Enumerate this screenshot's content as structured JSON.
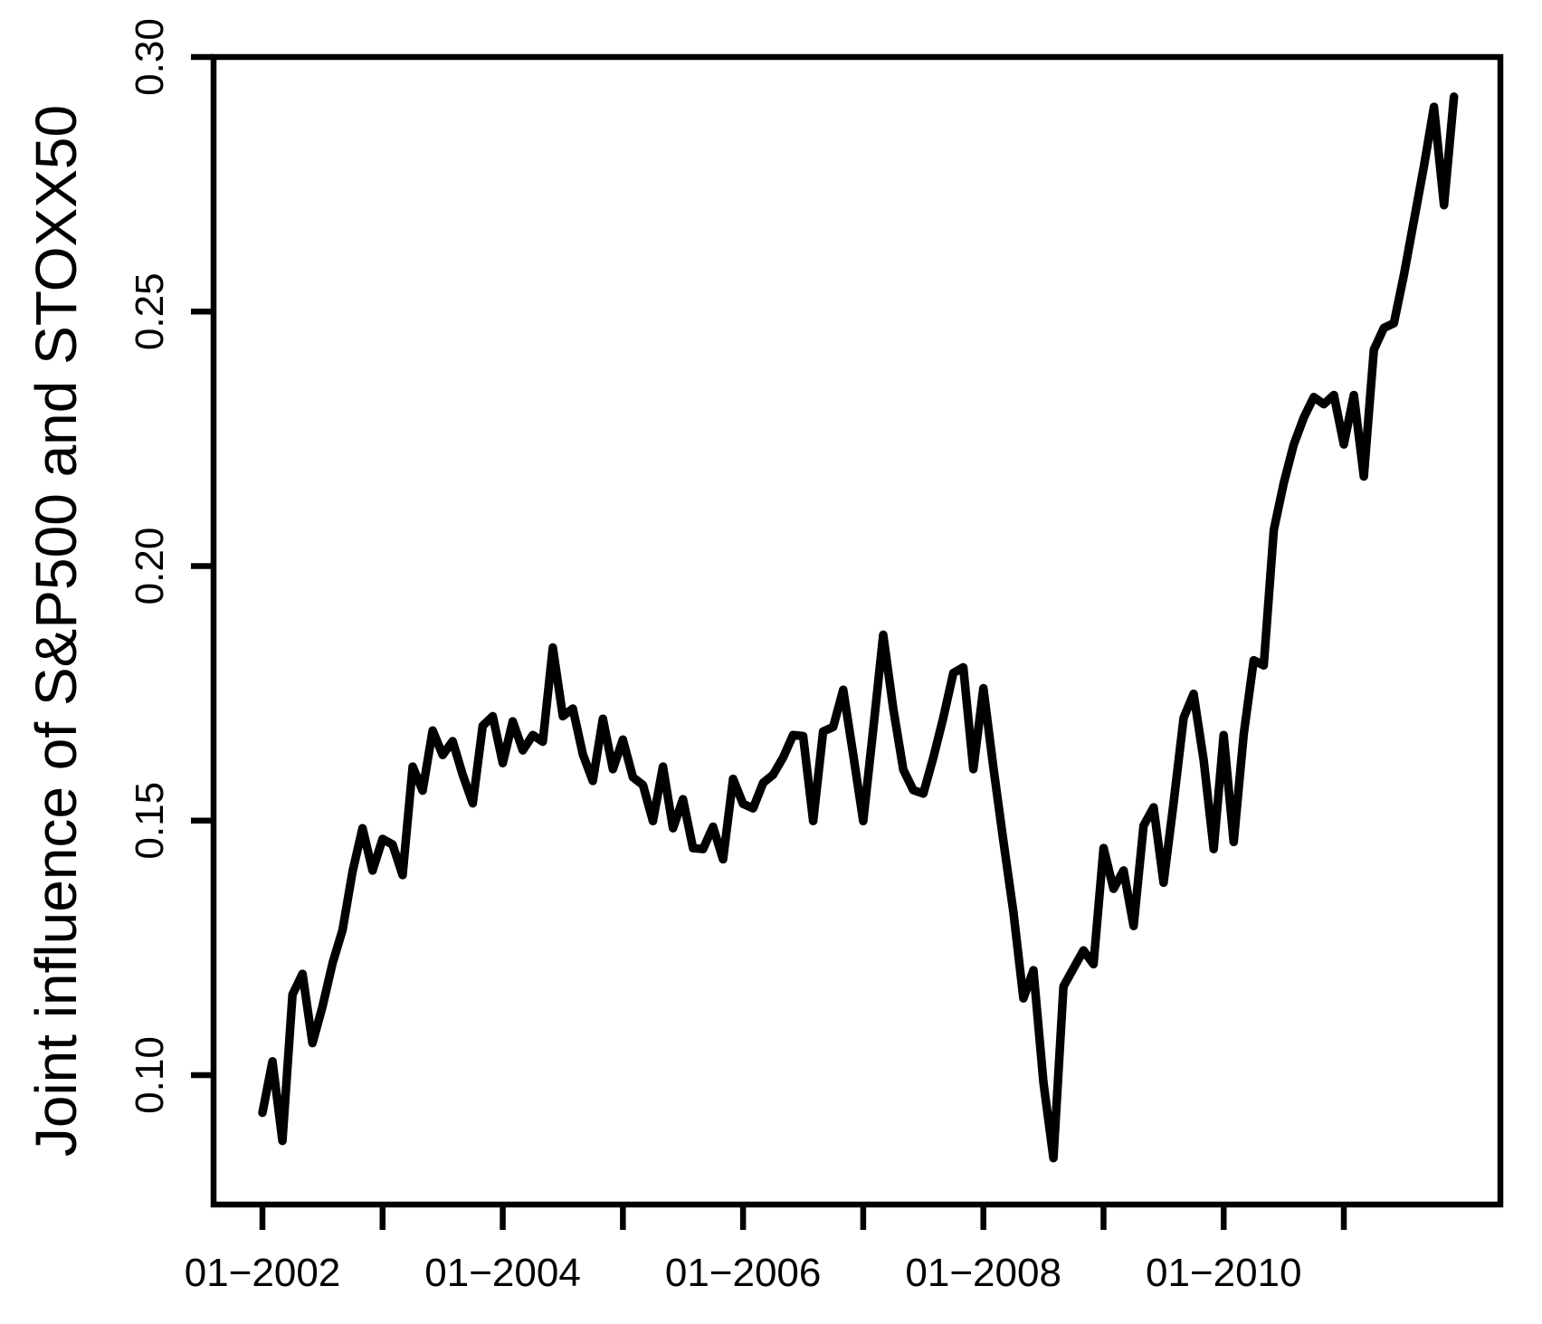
{
  "window": {
    "background": "#ffffff"
  },
  "chart_data": {
    "type": "line",
    "title": "",
    "xlabel": "",
    "ylabel": "Joint influence of S&P500 and STOXX50",
    "frequency": "monthly",
    "x_range": [
      "01-2002",
      "12-2011"
    ],
    "grid": false,
    "legend_position": "none",
    "line_color": "#000000",
    "axis_color": "#000000",
    "background_color": "#ffffff",
    "ylim": [
      0.075,
      0.3
    ],
    "y_ticks": [
      {
        "value": 0.1,
        "label": "0.10"
      },
      {
        "value": 0.15,
        "label": "0.15"
      },
      {
        "value": 0.2,
        "label": "0.20"
      },
      {
        "value": 0.25,
        "label": "0.25"
      },
      {
        "value": 0.3,
        "label": "0.30"
      }
    ],
    "x_ticks": [
      {
        "month_index": 0,
        "label": "01−2002"
      },
      {
        "month_index": 12,
        "label": ""
      },
      {
        "month_index": 24,
        "label": "01−2004"
      },
      {
        "month_index": 36,
        "label": ""
      },
      {
        "month_index": 48,
        "label": "01−2006"
      },
      {
        "month_index": 60,
        "label": ""
      },
      {
        "month_index": 72,
        "label": "01−2008"
      },
      {
        "month_index": 84,
        "label": ""
      },
      {
        "month_index": 96,
        "label": "01−2010"
      },
      {
        "month_index": 108,
        "label": ""
      }
    ],
    "values": [
      0.0926,
      0.1027,
      0.0871,
      0.1158,
      0.1199,
      0.1063,
      0.1135,
      0.122,
      0.1285,
      0.14,
      0.1485,
      0.1402,
      0.1464,
      0.1453,
      0.1393,
      0.1606,
      0.1559,
      0.1677,
      0.1629,
      0.1656,
      0.159,
      0.1534,
      0.1686,
      0.1705,
      0.1613,
      0.1695,
      0.1638,
      0.1668,
      0.1655,
      0.184,
      0.1705,
      0.172,
      0.163,
      0.1578,
      0.17,
      0.1601,
      0.1659,
      0.1585,
      0.157,
      0.1499,
      0.1606,
      0.1485,
      0.1542,
      0.1446,
      0.1444,
      0.1488,
      0.1424,
      0.1582,
      0.1533,
      0.1524,
      0.1574,
      0.159,
      0.1624,
      0.1668,
      0.1666,
      0.1499,
      0.1675,
      0.1684,
      0.1757,
      0.163,
      0.1499,
      0.168,
      0.1865,
      0.172,
      0.16,
      0.156,
      0.1553,
      0.1624,
      0.1702,
      0.179,
      0.1801,
      0.1601,
      0.176,
      0.1605,
      0.146,
      0.132,
      0.1151,
      0.1206,
      0.0985,
      0.0837,
      0.1174,
      0.121,
      0.1245,
      0.1218,
      0.1446,
      0.1366,
      0.1402,
      0.1293,
      0.149,
      0.1526,
      0.1378,
      0.1535,
      0.1702,
      0.1749,
      0.1619,
      0.1444,
      0.1668,
      0.1458,
      0.167,
      0.1815,
      0.1805,
      0.2071,
      0.2163,
      0.2239,
      0.2292,
      0.2332,
      0.2318,
      0.2336,
      0.2239,
      0.2336,
      0.2176,
      0.2425,
      0.2468,
      0.2477,
      0.2572,
      0.2679,
      0.2785,
      0.2902,
      0.2709,
      0.2922
    ]
  }
}
